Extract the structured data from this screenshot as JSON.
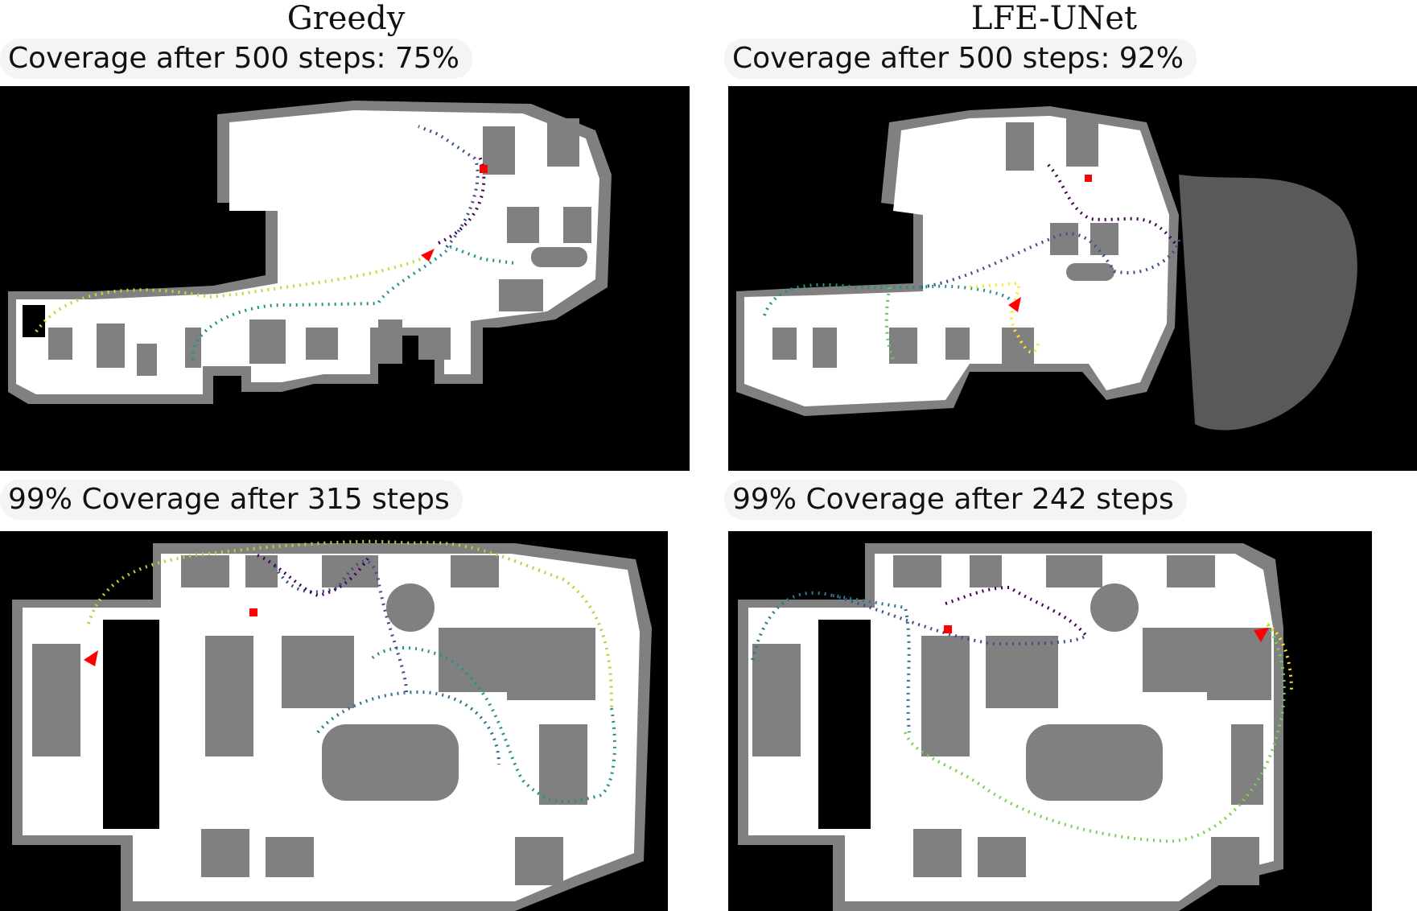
{
  "columns": [
    {
      "title": "Greedy"
    },
    {
      "title": "LFE-UNet"
    }
  ],
  "panels": [
    {
      "caption": "Coverage after 500 steps: 75%"
    },
    {
      "caption": "Coverage after 500 steps: 92%"
    },
    {
      "caption": "99% Coverage after 315 steps"
    },
    {
      "caption": "99% Coverage after 242 steps"
    }
  ],
  "colors": {
    "free_space": "#ffffff",
    "obstacle": "#808080",
    "unknown": "#000000",
    "start_marker": "#ff0000",
    "agent_marker": "#ff0000",
    "trajectory_colormap": [
      "#440154",
      "#3b528b",
      "#21918c",
      "#5ec962",
      "#fde725"
    ]
  }
}
